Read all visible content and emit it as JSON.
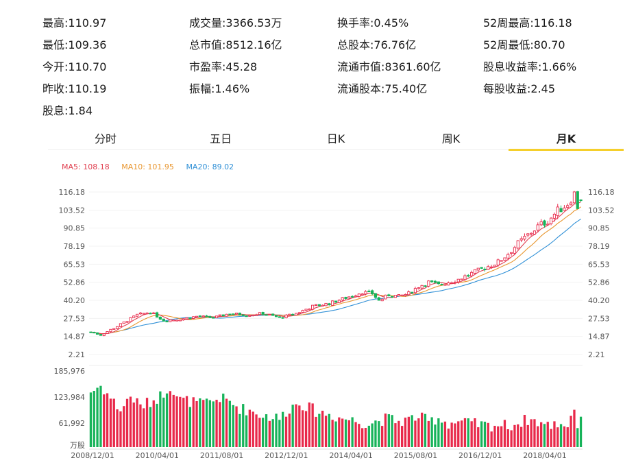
{
  "stats": [
    {
      "label": "最高",
      "value": "110.97"
    },
    {
      "label": "成交量",
      "value": "3366.53万"
    },
    {
      "label": "换手率",
      "value": "0.45%"
    },
    {
      "label": "52周最高",
      "value": "116.18"
    },
    {
      "label": "最低",
      "value": "109.36"
    },
    {
      "label": "总市值",
      "value": "8512.16亿"
    },
    {
      "label": "总股本",
      "value": "76.76亿"
    },
    {
      "label": "52周最低",
      "value": "80.70"
    },
    {
      "label": "今开",
      "value": "110.70"
    },
    {
      "label": "市盈率",
      "value": "45.28"
    },
    {
      "label": "流通市值",
      "value": "8361.60亿"
    },
    {
      "label": "股息收益率",
      "value": "1.66%"
    },
    {
      "label": "昨收",
      "value": "110.19"
    },
    {
      "label": "振幅",
      "value": "1.46%"
    },
    {
      "label": "流通股本",
      "value": "75.40亿"
    },
    {
      "label": "每股收益",
      "value": "2.45"
    },
    {
      "label": "股息",
      "value": "1.84"
    }
  ],
  "tabs": [
    "分时",
    "五日",
    "日K",
    "周K",
    "月K"
  ],
  "active_tab": "月K",
  "ma_legend": {
    "ma5": "MA5: 108.18",
    "ma10": "MA10: 101.95",
    "ma20": "MA20: 89.02"
  },
  "colors": {
    "up": "#e8294a",
    "down": "#17b35a",
    "ma5": "#e04050",
    "ma10": "#e8962f",
    "ma20": "#2e8fd6",
    "active_tab_underline": "#f5cf2b"
  },
  "chart_data": {
    "type": "candlestick",
    "y_ticks": [
      "116.18",
      "103.52",
      "90.85",
      "78.19",
      "65.53",
      "52.86",
      "40.20",
      "27.53",
      "14.87",
      "2.21"
    ],
    "y_range": [
      2.21,
      116.18
    ],
    "volume_ticks": [
      "185,976",
      "123,984",
      "61,992"
    ],
    "volume_unit": "万股",
    "volume_range": [
      0,
      185976
    ],
    "x_labels": [
      "2008/12/01",
      "2010/04/01",
      "2011/08/01",
      "2012/12/01",
      "2014/04/01",
      "2015/08/01",
      "2016/12/01",
      "2018/04/01"
    ],
    "moving_averages": {
      "MA5": 108.18,
      "MA10": 101.95,
      "MA20": 89.02
    },
    "close_anchors": [
      [
        0,
        18
      ],
      [
        3,
        16
      ],
      [
        8,
        22
      ],
      [
        14,
        30
      ],
      [
        18,
        32
      ],
      [
        22,
        26
      ],
      [
        27,
        27
      ],
      [
        32,
        29
      ],
      [
        37,
        28
      ],
      [
        42,
        31
      ],
      [
        47,
        30
      ],
      [
        52,
        31
      ],
      [
        57,
        28
      ],
      [
        62,
        31
      ],
      [
        67,
        36
      ],
      [
        72,
        38
      ],
      [
        77,
        42
      ],
      [
        82,
        46
      ],
      [
        85,
        45
      ],
      [
        87,
        40
      ],
      [
        90,
        44
      ],
      [
        93,
        43
      ],
      [
        96,
        45
      ],
      [
        99,
        50
      ],
      [
        102,
        53
      ],
      [
        105,
        51
      ],
      [
        108,
        53
      ],
      [
        111,
        55
      ],
      [
        114,
        58
      ],
      [
        117,
        61
      ],
      [
        120,
        64
      ],
      [
        123,
        67
      ],
      [
        126,
        73
      ],
      [
        129,
        80
      ],
      [
        132,
        86
      ],
      [
        135,
        92
      ],
      [
        138,
        96
      ],
      [
        141,
        103
      ],
      [
        144,
        108
      ],
      [
        146,
        115
      ],
      [
        147,
        106
      ],
      [
        148,
        110
      ]
    ],
    "volume_anchors": [
      [
        0,
        135000
      ],
      [
        3,
        150000
      ],
      [
        6,
        120000
      ],
      [
        9,
        90000
      ],
      [
        12,
        125000
      ],
      [
        15,
        100000
      ],
      [
        18,
        110000
      ],
      [
        21,
        125000
      ],
      [
        24,
        150000
      ],
      [
        27,
        115000
      ],
      [
        30,
        112000
      ],
      [
        33,
        105000
      ],
      [
        36,
        110000
      ],
      [
        39,
        120000
      ],
      [
        42,
        110000
      ],
      [
        45,
        95000
      ],
      [
        48,
        90000
      ],
      [
        51,
        80000
      ],
      [
        54,
        75000
      ],
      [
        57,
        70000
      ],
      [
        60,
        95000
      ],
      [
        63,
        110000
      ],
      [
        66,
        95000
      ],
      [
        69,
        85000
      ],
      [
        72,
        80000
      ],
      [
        75,
        72000
      ],
      [
        78,
        68000
      ],
      [
        81,
        62000
      ],
      [
        84,
        58000
      ],
      [
        87,
        65000
      ],
      [
        90,
        70000
      ],
      [
        93,
        62000
      ],
      [
        96,
        68000
      ],
      [
        99,
        75000
      ],
      [
        102,
        62000
      ],
      [
        105,
        72000
      ],
      [
        108,
        58000
      ],
      [
        111,
        62000
      ],
      [
        114,
        58000
      ],
      [
        117,
        55000
      ],
      [
        120,
        52000
      ],
      [
        123,
        55000
      ],
      [
        126,
        52000
      ],
      [
        129,
        58000
      ],
      [
        132,
        68000
      ],
      [
        135,
        62000
      ],
      [
        138,
        52000
      ],
      [
        141,
        58000
      ],
      [
        144,
        55000
      ],
      [
        146,
        95000
      ],
      [
        147,
        55000
      ],
      [
        148,
        75000
      ]
    ]
  }
}
